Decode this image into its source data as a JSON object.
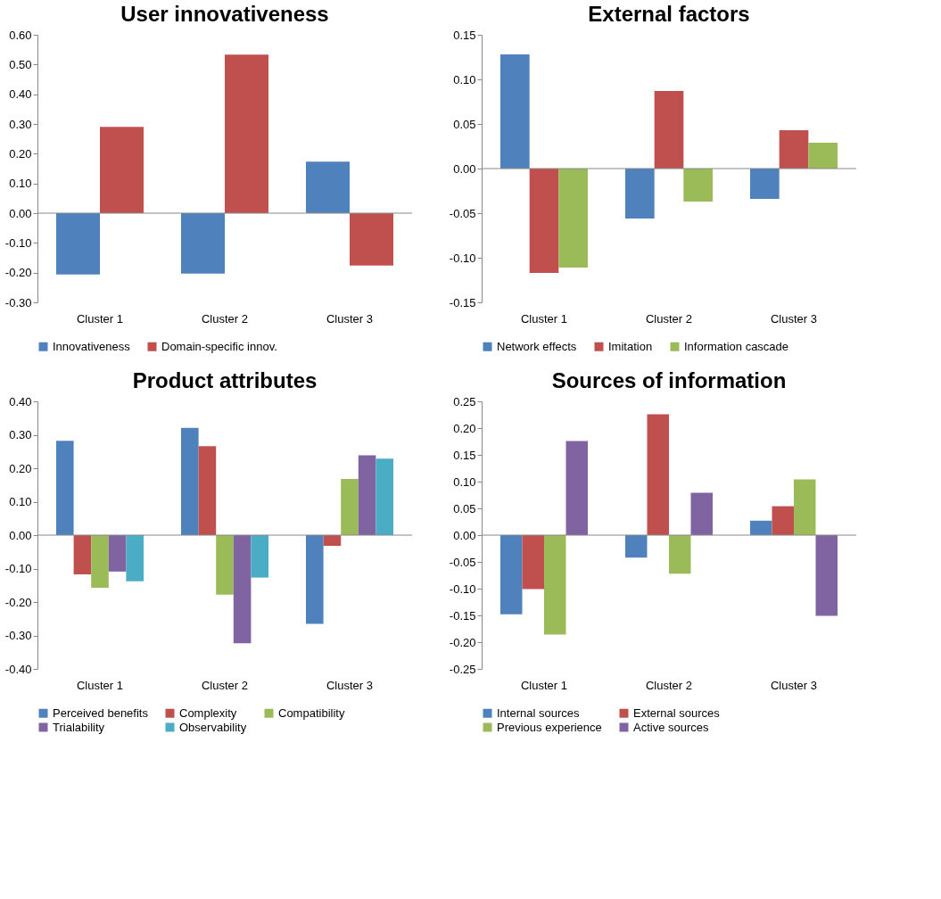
{
  "chart_data": [
    {
      "type": "bar",
      "title": "User innovativeness",
      "categories": [
        "Cluster 1",
        "Cluster 2",
        "Cluster 3"
      ],
      "series": [
        {
          "name": "Innovativeness",
          "color": "#4f81bd",
          "values": [
            -0.206,
            -0.203,
            0.173
          ]
        },
        {
          "name": "Domain-specific innov.",
          "color": "#c0504d",
          "values": [
            0.29,
            0.533,
            -0.176
          ]
        }
      ],
      "ylim": [
        -0.3,
        0.6
      ],
      "yticks": [
        {
          "value": -0.3,
          "label": "-0.30"
        },
        {
          "value": -0.2,
          "label": "-0.20"
        },
        {
          "value": -0.1,
          "label": "-0.10"
        },
        {
          "value": 0,
          "label": "0.00"
        },
        {
          "value": 0.1,
          "label": "0.10"
        },
        {
          "value": 0.2,
          "label": "0.20"
        },
        {
          "value": 0.3,
          "label": "0.30"
        },
        {
          "value": 0.4,
          "label": "0.40"
        },
        {
          "value": 0.5,
          "label": "0.50"
        },
        {
          "value": 0.6,
          "label": "0.60"
        }
      ],
      "grid": false,
      "legend": "bottom",
      "ref_lines": [
        {
          "axis": "y",
          "value": 0,
          "color": "#888888"
        }
      ]
    },
    {
      "type": "bar",
      "title": "External factors",
      "categories": [
        "Cluster 1",
        "Cluster 2",
        "Cluster 3"
      ],
      "series": [
        {
          "name": "Network effects",
          "color": "#4f81bd",
          "values": [
            0.128,
            -0.056,
            -0.034
          ]
        },
        {
          "name": "Imitation",
          "color": "#c0504d",
          "values": [
            -0.117,
            0.087,
            0.043
          ]
        },
        {
          "name": "Information cascade",
          "color": "#9bbb59",
          "values": [
            -0.111,
            -0.037,
            0.029
          ]
        }
      ],
      "ylim": [
        -0.15,
        0.15
      ],
      "yticks": [
        {
          "value": -0.15,
          "label": "-0.15"
        },
        {
          "value": -0.1,
          "label": "-0.10"
        },
        {
          "value": -0.05,
          "label": "-0.05"
        },
        {
          "value": 0,
          "label": "0.00"
        },
        {
          "value": 0.05,
          "label": "0.05"
        },
        {
          "value": 0.1,
          "label": "0.10"
        },
        {
          "value": 0.15,
          "label": "0.15"
        }
      ],
      "grid": false,
      "legend": "bottom",
      "ref_lines": [
        {
          "axis": "y",
          "value": 0,
          "color": "#888888"
        }
      ]
    },
    {
      "type": "bar",
      "title": "Product attributes",
      "categories": [
        "Cluster 1",
        "Cluster 2",
        "Cluster 3"
      ],
      "series": [
        {
          "name": "Perceived benefits",
          "color": "#4f81bd",
          "values": [
            0.282,
            0.321,
            -0.265
          ]
        },
        {
          "name": "Complexity",
          "color": "#c0504d",
          "values": [
            -0.117,
            0.266,
            -0.032
          ]
        },
        {
          "name": "Compatibility",
          "color": "#9bbb59",
          "values": [
            -0.157,
            -0.178,
            0.168
          ]
        },
        {
          "name": "Trialability",
          "color": "#8064a2",
          "values": [
            -0.109,
            -0.323,
            0.239
          ]
        },
        {
          "name": "Observability",
          "color": "#4bacc6",
          "values": [
            -0.138,
            -0.127,
            0.229
          ]
        }
      ],
      "ylim": [
        -0.4,
        0.4
      ],
      "yticks": [
        {
          "value": -0.4,
          "label": "-0.40"
        },
        {
          "value": -0.3,
          "label": "-0.30"
        },
        {
          "value": -0.2,
          "label": "-0.20"
        },
        {
          "value": -0.1,
          "label": "-0.10"
        },
        {
          "value": 0,
          "label": "0.00"
        },
        {
          "value": 0.1,
          "label": "0.10"
        },
        {
          "value": 0.2,
          "label": "0.20"
        },
        {
          "value": 0.3,
          "label": "0.30"
        },
        {
          "value": 0.4,
          "label": "0.40"
        }
      ],
      "grid": false,
      "legend": "bottom",
      "ref_lines": [
        {
          "axis": "y",
          "value": 0,
          "color": "#888888"
        }
      ]
    },
    {
      "type": "bar",
      "title": "Sources of information",
      "categories": [
        "Cluster 1",
        "Cluster 2",
        "Cluster 3"
      ],
      "series": [
        {
          "name": "Internal sources",
          "color": "#4f81bd",
          "values": [
            -0.148,
            -0.042,
            0.027
          ]
        },
        {
          "name": "External sources",
          "color": "#c0504d",
          "values": [
            -0.101,
            0.226,
            0.054
          ]
        },
        {
          "name": "Previous experience",
          "color": "#9bbb59",
          "values": [
            -0.186,
            -0.072,
            0.104
          ]
        },
        {
          "name": "Active sources",
          "color": "#8064a2",
          "values": [
            0.176,
            0.079,
            -0.151
          ]
        }
      ],
      "ylim": [
        -0.25,
        0.25
      ],
      "yticks": [
        {
          "value": -0.25,
          "label": "-0.25"
        },
        {
          "value": -0.2,
          "label": "-0.20"
        },
        {
          "value": -0.15,
          "label": "-0.15"
        },
        {
          "value": -0.1,
          "label": "-0.10"
        },
        {
          "value": -0.05,
          "label": "-0.05"
        },
        {
          "value": 0,
          "label": "0.00"
        },
        {
          "value": 0.05,
          "label": "0.05"
        },
        {
          "value": 0.1,
          "label": "0.10"
        },
        {
          "value": 0.15,
          "label": "0.15"
        },
        {
          "value": 0.2,
          "label": "0.20"
        },
        {
          "value": 0.25,
          "label": "0.25"
        }
      ],
      "grid": false,
      "legend": "bottom",
      "ref_lines": [
        {
          "axis": "y",
          "value": 0,
          "color": "#888888"
        }
      ]
    }
  ]
}
